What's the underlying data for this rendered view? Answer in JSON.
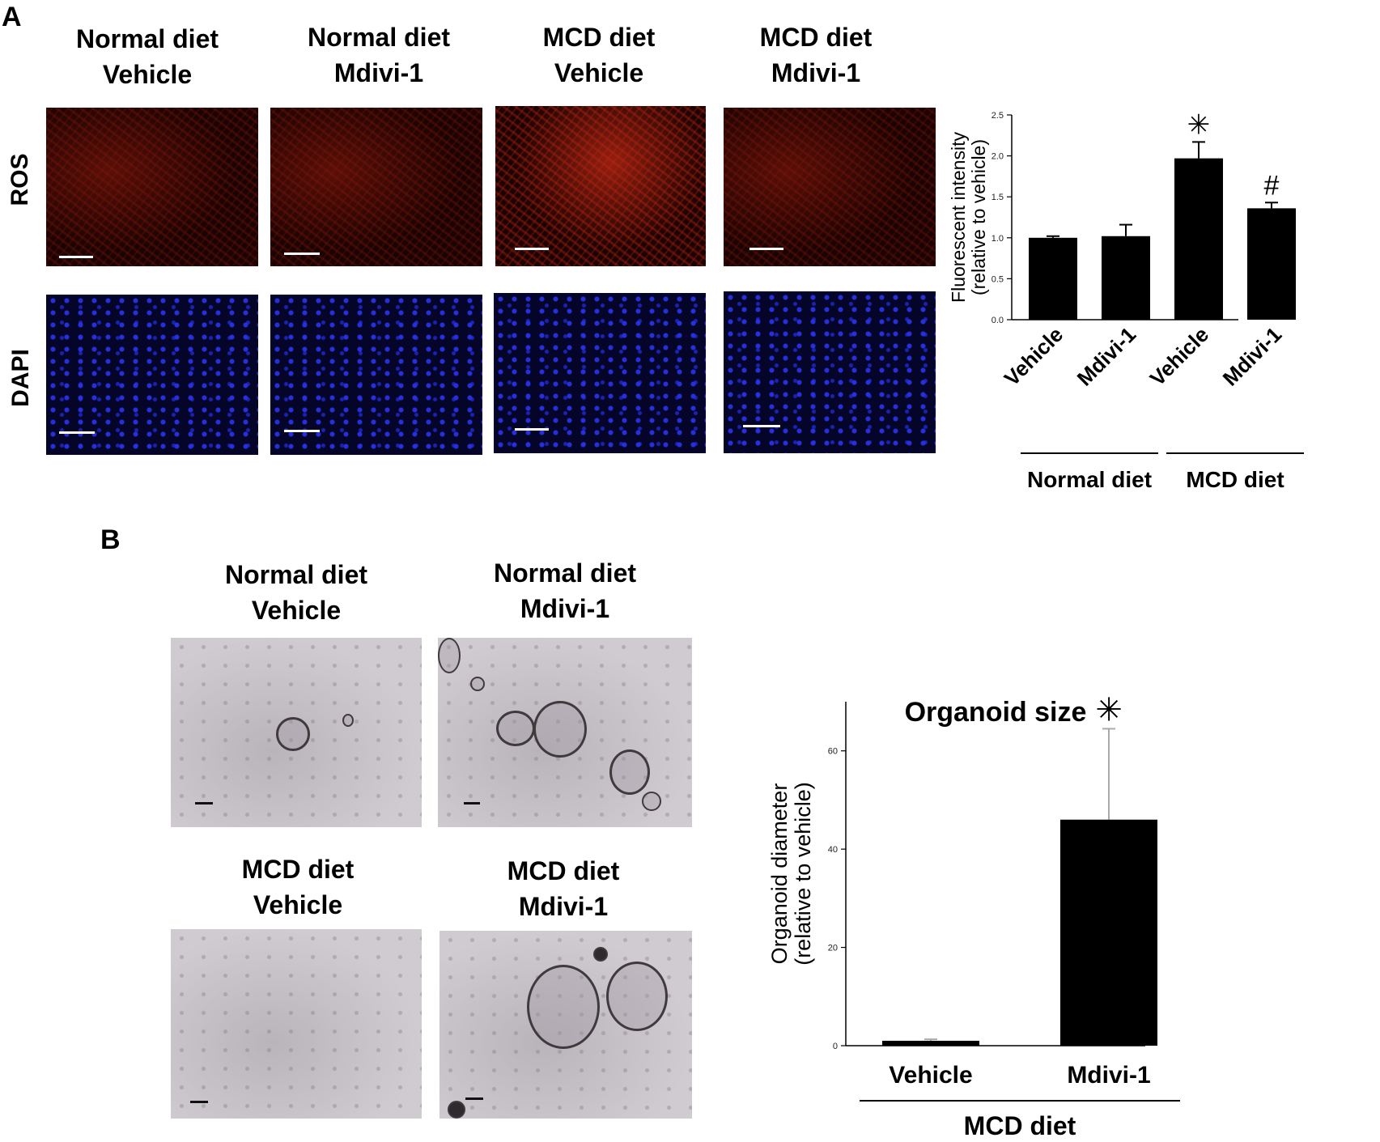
{
  "panel_a": {
    "letter": "A",
    "columns": [
      {
        "line1": "Normal diet",
        "line2": "Vehicle"
      },
      {
        "line1": "Normal diet",
        "line2": "Mdivi-1"
      },
      {
        "line1": "MCD diet",
        "line2": "Vehicle"
      },
      {
        "line1": "MCD diet",
        "line2": "Mdivi-1"
      }
    ],
    "row_labels": {
      "ros": "ROS",
      "dapi": "DAPI"
    }
  },
  "panel_b": {
    "letter": "B",
    "top_columns": [
      {
        "line1": "Normal diet",
        "line2": "Vehicle"
      },
      {
        "line1": "Normal diet",
        "line2": "Mdivi-1"
      }
    ],
    "bottom_columns": [
      {
        "line1": "MCD diet",
        "line2": "Vehicle"
      },
      {
        "line1": "MCD diet",
        "line2": "Mdivi-1"
      }
    ]
  },
  "chart_data": [
    {
      "type": "bar",
      "title": "",
      "ylabel_line1": "Fluorescent intensity",
      "ylabel_line2": "(relative to vehicle)",
      "categories": [
        "Vehicle",
        "Mdivi-1",
        "Vehicle",
        "Mdivi-1"
      ],
      "groups": [
        {
          "label": "Normal diet",
          "indices": [
            0,
            1
          ]
        },
        {
          "label": "MCD diet",
          "indices": [
            2,
            3
          ]
        }
      ],
      "values": [
        1.0,
        1.02,
        1.97,
        1.36
      ],
      "errors": [
        0.02,
        0.14,
        0.2,
        0.07
      ],
      "annotations": [
        "",
        "",
        "✳",
        "#"
      ],
      "ylim": [
        0,
        2.5
      ],
      "yticks": [
        "0.0",
        "0.5",
        "1.0",
        "1.5",
        "2.0",
        "2.5"
      ],
      "bar_color": "#000000"
    },
    {
      "type": "bar",
      "title": "Organoid size",
      "ylabel_line1": "Organoid diameter",
      "ylabel_line2": "(relative to vehicle)",
      "categories": [
        "Vehicle",
        "Mdivi-1"
      ],
      "groups": [
        {
          "label": "MCD diet",
          "indices": [
            0,
            1
          ]
        }
      ],
      "values": [
        1,
        46
      ],
      "errors": [
        0.3,
        18.5
      ],
      "annotations": [
        "",
        "✳"
      ],
      "ylim": [
        0,
        70
      ],
      "yticks": [
        "0",
        "20",
        "40",
        "60"
      ],
      "bar_color": "#000000"
    }
  ]
}
